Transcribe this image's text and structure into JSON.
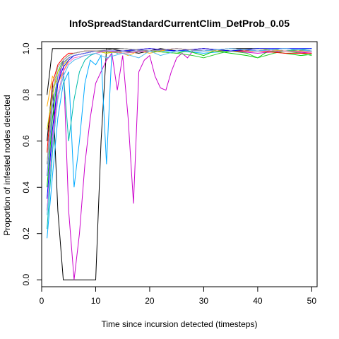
{
  "chart_data": {
    "type": "line",
    "title": "InfoSpreadStandardCurrentClim_DetProb_0.05",
    "xlabel": "Time since incursion detected (timesteps)",
    "ylabel": "Proportion of infested nodes detected",
    "xlim": [
      0,
      51
    ],
    "ylim": [
      -0.03,
      1.03
    ],
    "x_ticks": [
      0,
      10,
      20,
      30,
      40,
      50
    ],
    "y_ticks": [
      0.0,
      0.2,
      0.4,
      0.6,
      0.8,
      1.0
    ],
    "grid": false,
    "legend": "none",
    "series": [
      {
        "color": "#000000",
        "x": [
          1,
          2,
          3,
          4,
          5,
          6,
          7,
          8,
          9,
          10,
          11,
          12,
          15,
          20,
          25,
          30,
          35,
          40,
          45,
          50
        ],
        "y": [
          0.8,
          1.0,
          1.0,
          1.0,
          1.0,
          1.0,
          1.0,
          1.0,
          1.0,
          1.0,
          1.0,
          1.0,
          1.0,
          0.99,
          1.0,
          0.99,
          1.0,
          1.0,
          0.99,
          0.99
        ]
      },
      {
        "color": "#000000",
        "x": [
          1,
          2,
          3,
          4,
          5,
          6,
          7,
          8,
          9,
          10,
          11,
          12,
          15,
          18,
          20,
          22,
          25,
          30,
          35,
          40,
          45,
          50
        ],
        "y": [
          0.6,
          0.85,
          0.3,
          0.0,
          0.0,
          0.0,
          0.0,
          0.0,
          0.0,
          0.0,
          0.6,
          1.0,
          0.99,
          0.98,
          0.99,
          1.0,
          0.99,
          1.0,
          0.99,
          0.99,
          1.0,
          0.99
        ]
      },
      {
        "color": "#CC00CC",
        "x": [
          1,
          2,
          3,
          4,
          5,
          6,
          7,
          8,
          9,
          10,
          11,
          12,
          13,
          14,
          15,
          16,
          17,
          18,
          19,
          20,
          21,
          22,
          23,
          24,
          25,
          26,
          27,
          28,
          30,
          35,
          40,
          45,
          50
        ],
        "y": [
          0.3,
          0.6,
          0.85,
          0.95,
          0.3,
          0.0,
          0.2,
          0.5,
          0.7,
          0.85,
          0.9,
          0.95,
          0.98,
          0.82,
          0.97,
          0.7,
          0.33,
          0.9,
          0.95,
          0.97,
          0.88,
          0.83,
          0.82,
          0.9,
          0.96,
          0.98,
          0.96,
          0.99,
          0.99,
          0.99,
          0.98,
          0.99,
          0.98
        ]
      },
      {
        "color": "#00AAFF",
        "x": [
          1,
          2,
          3,
          4,
          5,
          6,
          7,
          8,
          9,
          10,
          11,
          12,
          13,
          14,
          15,
          20,
          25,
          30,
          35,
          40,
          45,
          50
        ],
        "y": [
          0.18,
          0.45,
          0.7,
          0.85,
          0.9,
          0.4,
          0.6,
          0.85,
          0.95,
          0.93,
          0.97,
          0.5,
          0.99,
          0.98,
          0.99,
          0.99,
          0.99,
          0.98,
          0.99,
          1.0,
          0.99,
          1.0
        ]
      },
      {
        "color": "#00BBAA",
        "x": [
          1,
          2,
          3,
          4,
          5,
          6,
          7,
          8,
          9,
          10,
          12,
          15,
          20,
          25,
          30,
          35,
          40,
          45,
          50
        ],
        "y": [
          0.22,
          0.55,
          0.8,
          0.9,
          0.6,
          0.78,
          0.9,
          0.95,
          0.97,
          0.98,
          0.99,
          0.99,
          1.0,
          0.99,
          1.0,
          0.99,
          1.0,
          0.99,
          1.0
        ]
      },
      {
        "color": "#00CC00",
        "x": [
          1,
          2,
          3,
          4,
          5,
          6,
          8,
          10,
          12,
          15,
          20,
          25,
          27,
          30,
          32,
          35,
          38,
          40,
          42,
          45,
          48,
          50
        ],
        "y": [
          0.4,
          0.7,
          0.88,
          0.94,
          0.96,
          0.97,
          0.98,
          0.99,
          0.99,
          0.98,
          0.99,
          0.98,
          0.99,
          0.97,
          0.99,
          0.98,
          0.97,
          0.96,
          0.99,
          0.98,
          0.97,
          0.975
        ]
      },
      {
        "color": "#33CC33",
        "x": [
          1,
          2,
          3,
          4,
          5,
          6,
          8,
          10,
          15,
          20,
          25,
          28,
          30,
          33,
          35,
          38,
          40,
          43,
          45,
          48,
          50
        ],
        "y": [
          0.5,
          0.8,
          0.9,
          0.95,
          0.97,
          0.98,
          0.99,
          0.99,
          0.98,
          0.99,
          0.98,
          0.97,
          0.96,
          0.98,
          0.99,
          0.98,
          0.96,
          0.98,
          0.99,
          0.98,
          0.97
        ]
      },
      {
        "color": "#FF0000",
        "x": [
          1,
          2,
          3,
          4,
          5,
          6,
          8,
          10,
          15,
          20,
          25,
          30,
          35,
          40,
          45,
          50
        ],
        "y": [
          0.55,
          0.85,
          0.93,
          0.96,
          0.98,
          0.98,
          0.99,
          0.99,
          0.99,
          1.0,
          0.99,
          1.0,
          0.99,
          0.99,
          0.98,
          0.98
        ]
      },
      {
        "color": "#FFAA00",
        "x": [
          1,
          2,
          3,
          4,
          5,
          6,
          8,
          10,
          12,
          14,
          16,
          18,
          20,
          22,
          25,
          30,
          35,
          40,
          45,
          50
        ],
        "y": [
          0.75,
          0.88,
          0.85,
          0.9,
          0.95,
          0.97,
          0.98,
          0.99,
          0.98,
          0.99,
          0.97,
          0.99,
          0.98,
          0.99,
          1.0,
          0.99,
          1.0,
          0.99,
          1.0,
          0.99
        ]
      },
      {
        "color": "#CCCC00",
        "x": [
          1,
          2,
          3,
          4,
          5,
          6,
          8,
          10,
          12,
          15,
          20,
          25,
          30,
          35,
          40,
          45,
          50
        ],
        "y": [
          0.65,
          0.8,
          0.9,
          0.93,
          0.96,
          0.97,
          0.98,
          0.99,
          0.98,
          0.99,
          0.99,
          1.0,
          0.99,
          0.99,
          1.0,
          0.99,
          0.99
        ]
      },
      {
        "color": "#0000FF",
        "x": [
          1,
          2,
          3,
          4,
          5,
          6,
          8,
          10,
          15,
          20,
          25,
          30,
          35,
          40,
          45,
          50
        ],
        "y": [
          0.35,
          0.65,
          0.85,
          0.92,
          0.95,
          0.97,
          0.98,
          0.99,
          0.99,
          1.0,
          0.99,
          1.0,
          0.99,
          1.0,
          1.0,
          1.0
        ]
      },
      {
        "color": "#6666FF",
        "x": [
          1,
          2,
          3,
          4,
          5,
          6,
          8,
          10,
          15,
          20,
          25,
          30,
          35,
          40,
          45,
          50
        ],
        "y": [
          0.45,
          0.75,
          0.88,
          0.94,
          0.96,
          0.97,
          0.98,
          0.99,
          0.99,
          0.99,
          1.0,
          0.99,
          1.0,
          0.99,
          1.0,
          0.99
        ]
      },
      {
        "color": "#FF66CC",
        "x": [
          1,
          2,
          3,
          4,
          5,
          6,
          8,
          10,
          12,
          15,
          20,
          25,
          30,
          35,
          40,
          45,
          50
        ],
        "y": [
          0.3,
          0.6,
          0.8,
          0.9,
          0.94,
          0.96,
          0.97,
          0.98,
          0.99,
          0.98,
          0.99,
          1.0,
          0.99,
          1.0,
          0.99,
          0.99,
          0.985
        ]
      },
      {
        "color": "#999999",
        "x": [
          1,
          2,
          3,
          4,
          5,
          6,
          8,
          10,
          15,
          20,
          25,
          30,
          35,
          40,
          45,
          50
        ],
        "y": [
          0.5,
          0.82,
          0.92,
          0.95,
          0.97,
          0.98,
          0.99,
          0.99,
          1.0,
          0.99,
          1.0,
          0.99,
          1.0,
          0.99,
          1.0,
          0.99
        ]
      },
      {
        "color": "#55BBEE",
        "x": [
          1,
          2,
          3,
          4,
          5,
          6,
          8,
          10,
          12,
          15,
          18,
          20,
          22,
          25,
          30,
          35,
          40,
          45,
          50
        ],
        "y": [
          0.28,
          0.58,
          0.78,
          0.88,
          0.93,
          0.95,
          0.97,
          0.98,
          0.96,
          0.98,
          0.96,
          0.99,
          0.97,
          0.99,
          0.99,
          1.0,
          0.99,
          1.0,
          0.99
        ]
      }
    ]
  }
}
